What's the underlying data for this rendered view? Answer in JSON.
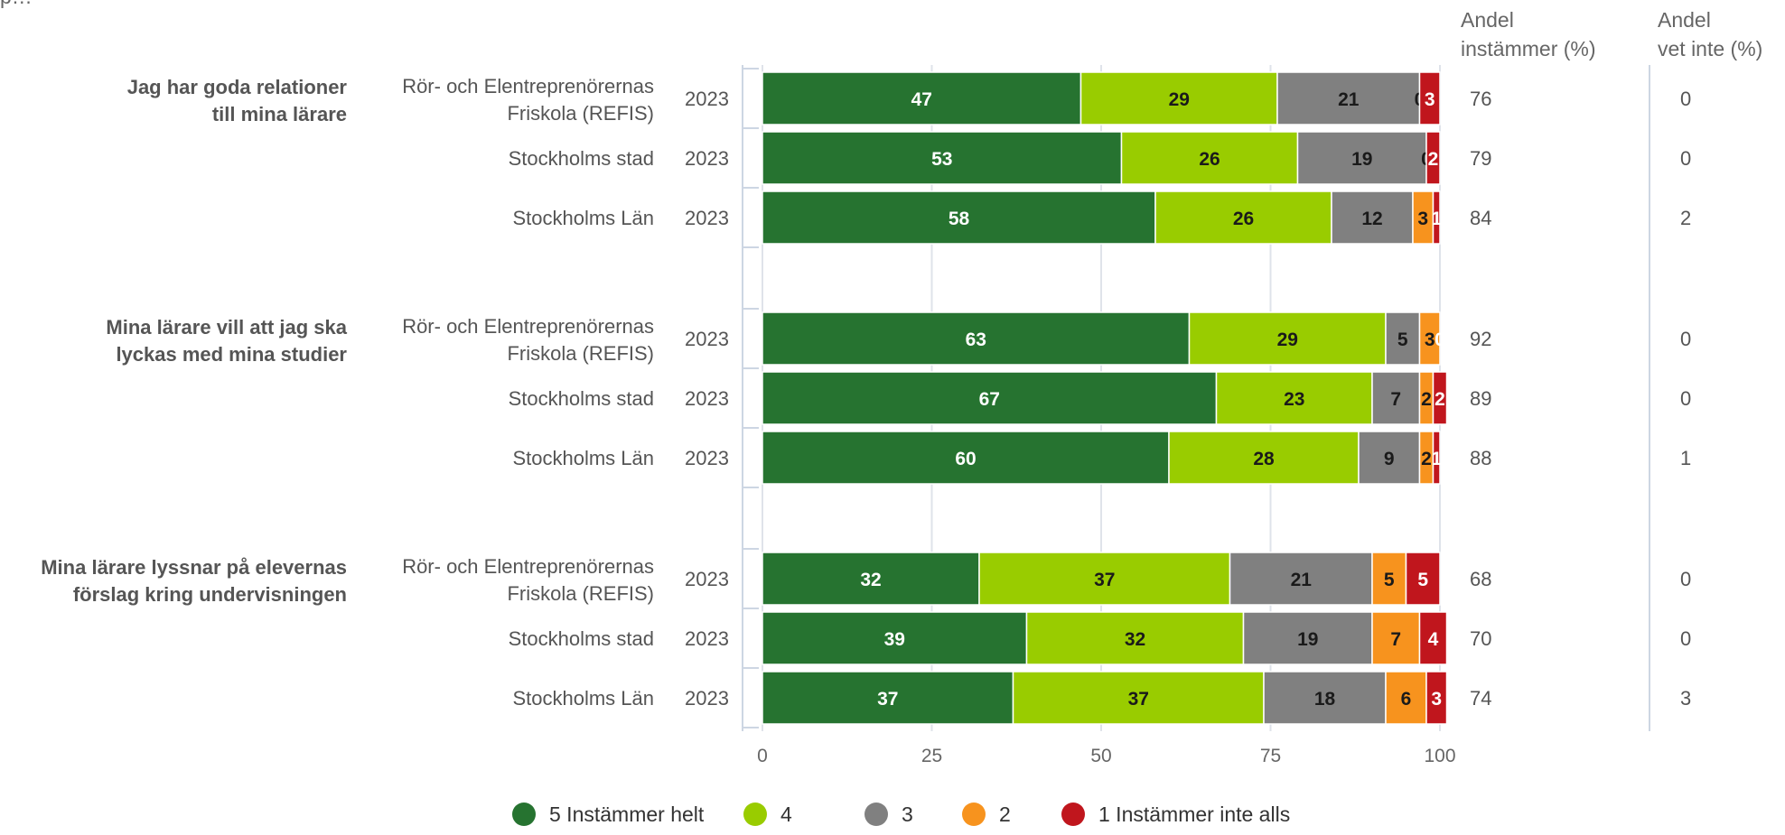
{
  "chart_data": {
    "type": "bar",
    "orientation": "horizontal",
    "stacked": true,
    "title_fragment": "p… ",
    "header_agree": [
      "Andel",
      "instämmer (%)"
    ],
    "header_dontknow": [
      "Andel",
      "vet inte (%)"
    ],
    "xlim": [
      0,
      100
    ],
    "xticks": [
      0,
      25,
      50,
      75,
      100
    ],
    "grid": true,
    "legend_position": "bottom",
    "series": [
      {
        "name": "5 Instämmer helt",
        "color": "#267330",
        "label_color": "#ffffff"
      },
      {
        "name": "4",
        "color": "#99cc00",
        "label_color": "#1a1a1a"
      },
      {
        "name": "3",
        "color": "#808080",
        "label_color": "#1a1a1a"
      },
      {
        "name": "2",
        "color": "#f7931e",
        "label_color": "#1a1a1a"
      },
      {
        "name": "1 Instämmer inte alls",
        "color": "#c0161d",
        "label_color": "#ffffff"
      }
    ],
    "groups": [
      {
        "question": [
          "Jag har goda relationer",
          "till mina lärare"
        ],
        "rows": [
          {
            "entity": [
              "Rör- och Elentreprenörernas",
              "Friskola (REFIS)"
            ],
            "year": "2023",
            "values": [
              47,
              29,
              21,
              0,
              3
            ],
            "agree": "76",
            "dontknow": "0"
          },
          {
            "entity": [
              "Stockholms stad"
            ],
            "year": "2023",
            "values": [
              53,
              26,
              19,
              0,
              2
            ],
            "agree": "79",
            "dontknow": "0"
          },
          {
            "entity": [
              "Stockholms Län"
            ],
            "year": "2023",
            "values": [
              58,
              26,
              12,
              3,
              1
            ],
            "agree": "84",
            "dontknow": "2"
          }
        ]
      },
      {
        "question": [
          "Mina lärare vill att jag ska",
          "lyckas med mina studier"
        ],
        "rows": [
          {
            "entity": [
              "Rör- och Elentreprenörernas",
              "Friskola (REFIS)"
            ],
            "year": "2023",
            "values": [
              63,
              29,
              5,
              3,
              0
            ],
            "agree": "92",
            "dontknow": "0"
          },
          {
            "entity": [
              "Stockholms stad"
            ],
            "year": "2023",
            "values": [
              67,
              23,
              7,
              2,
              2
            ],
            "agree": "89",
            "dontknow": "0"
          },
          {
            "entity": [
              "Stockholms Län"
            ],
            "year": "2023",
            "values": [
              60,
              28,
              9,
              2,
              1
            ],
            "agree": "88",
            "dontknow": "1"
          }
        ]
      },
      {
        "question": [
          "Mina lärare lyssnar på elevernas",
          "förslag kring undervisningen"
        ],
        "rows": [
          {
            "entity": [
              "Rör- och Elentreprenörernas",
              "Friskola (REFIS)"
            ],
            "year": "2023",
            "values": [
              32,
              37,
              21,
              5,
              5
            ],
            "agree": "68",
            "dontknow": "0"
          },
          {
            "entity": [
              "Stockholms stad"
            ],
            "year": "2023",
            "values": [
              39,
              32,
              19,
              7,
              4
            ],
            "agree": "70",
            "dontknow": "0"
          },
          {
            "entity": [
              "Stockholms Län"
            ],
            "year": "2023",
            "values": [
              37,
              37,
              18,
              6,
              3
            ],
            "agree": "74",
            "dontknow": "3"
          }
        ]
      }
    ]
  }
}
